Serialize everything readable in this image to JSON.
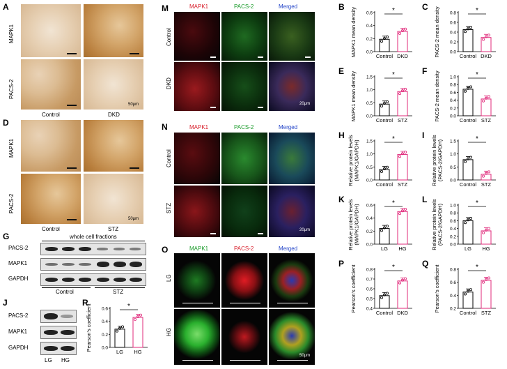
{
  "panels": {
    "A": "A",
    "B": "B",
    "C": "C",
    "D": "D",
    "E": "E",
    "F": "F",
    "G": "G",
    "H": "H",
    "I": "I",
    "J": "J",
    "K": "K",
    "L": "L",
    "M": "M",
    "N": "N",
    "O": "O",
    "P": "P",
    "Q": "Q",
    "R": "R"
  },
  "panel_a": {
    "row_labels": [
      "MAPK1",
      "PACS-2"
    ],
    "col_labels": [
      "Control",
      "DKD"
    ],
    "scale": "50μm"
  },
  "panel_d": {
    "row_labels": [
      "MAPK1",
      "PACS-2"
    ],
    "col_labels": [
      "Control",
      "STZ"
    ],
    "scale": "50μm"
  },
  "panel_g": {
    "header": "whole cell fractions",
    "rows": [
      "PACS-2",
      "MAPK1",
      "GAPDH"
    ],
    "groups": [
      "Control",
      "STZ"
    ]
  },
  "panel_j": {
    "rows": [
      "PACS-2",
      "MAPK1",
      "GAPDH"
    ],
    "lanes": [
      "LG",
      "HG"
    ]
  },
  "panel_m": {
    "col_labels": [
      "MAPK1",
      "PACS-2",
      "Merged"
    ],
    "row_labels": [
      "Control",
      "DKD"
    ],
    "scale": "20μm"
  },
  "panel_n": {
    "col_labels": [
      "MAPK1",
      "PACS-2",
      "Merged"
    ],
    "row_labels": [
      "Control",
      "STZ"
    ],
    "scale": "20μm"
  },
  "panel_o": {
    "col_labels": [
      "MAPK1",
      "PACS-2",
      "Merged"
    ],
    "row_labels": [
      "LG",
      "HG"
    ],
    "scale": "50μm"
  },
  "colors": {
    "control": "#000000",
    "treatment": "#e0287a",
    "red_channel": "#d81e2a",
    "green_channel": "#1a9b2a",
    "blue_channel": "#2445c8"
  },
  "chart_data": [
    {
      "id": "B",
      "type": "bar",
      "ylabel": "MAPK1 mean density",
      "categories": [
        "Control",
        "DKD"
      ],
      "values": [
        0.19,
        0.31
      ],
      "ylim": [
        0,
        0.6
      ],
      "yticks": [
        0,
        0.2,
        0.4,
        0.6
      ],
      "ytick_labels": [
        "0.0",
        "0.2",
        "0.4",
        "0.6"
      ],
      "significance": "*"
    },
    {
      "id": "C",
      "type": "bar",
      "ylabel": "PACS-2 mean density",
      "categories": [
        "Control",
        "DKD"
      ],
      "values": [
        0.45,
        0.29
      ],
      "ylim": [
        0,
        0.8
      ],
      "yticks": [
        0,
        0.2,
        0.4,
        0.6,
        0.8
      ],
      "ytick_labels": [
        "0.0",
        "0.2",
        "0.4",
        "0.6",
        "0.8"
      ],
      "significance": "*"
    },
    {
      "id": "E",
      "type": "bar",
      "ylabel": "MAPK1 mean density",
      "categories": [
        "Control",
        "STZ"
      ],
      "values": [
        0.45,
        0.93
      ],
      "ylim": [
        0,
        1.5
      ],
      "yticks": [
        0,
        0.5,
        1.0,
        1.5
      ],
      "ytick_labels": [
        "0.0",
        "0.5",
        "1.0",
        "1.5"
      ],
      "significance": "*"
    },
    {
      "id": "F",
      "type": "bar",
      "ylabel": "PACS-2 mean density",
      "categories": [
        "Control",
        "STZ"
      ],
      "values": [
        0.68,
        0.43
      ],
      "ylim": [
        0,
        1.0
      ],
      "yticks": [
        0,
        0.2,
        0.4,
        0.6,
        0.8,
        1.0
      ],
      "ytick_labels": [
        "0.0",
        "0.2",
        "0.4",
        "0.6",
        "0.8",
        "1.0"
      ],
      "significance": "*"
    },
    {
      "id": "H",
      "type": "bar",
      "ylabel": "Relative protein levels (MAPK1/GAPDH)",
      "categories": [
        "Control",
        "STZ"
      ],
      "values": [
        0.4,
        0.98
      ],
      "ylim": [
        0,
        1.5
      ],
      "yticks": [
        0,
        0.5,
        1.0,
        1.5
      ],
      "ytick_labels": [
        "0.0",
        "0.5",
        "1.0",
        "1.5"
      ],
      "significance": "*"
    },
    {
      "id": "I",
      "type": "bar",
      "ylabel": "Relative protein levels (PACS-2/GAPDH)",
      "categories": [
        "Control",
        "STZ"
      ],
      "values": [
        0.78,
        0.22
      ],
      "ylim": [
        0,
        1.5
      ],
      "yticks": [
        0,
        0.5,
        1.0,
        1.5
      ],
      "ytick_labels": [
        "0.0",
        "0.5",
        "1.0",
        "1.5"
      ],
      "significance": "*"
    },
    {
      "id": "K",
      "type": "bar",
      "ylabel": "Relative protein levels (MAPK1/GAPDH)",
      "categories": [
        "LG",
        "HG"
      ],
      "values": [
        0.24,
        0.5
      ],
      "ylim": [
        0,
        0.6
      ],
      "yticks": [
        0,
        0.2,
        0.4,
        0.6
      ],
      "ytick_labels": [
        "0.0",
        "0.2",
        "0.4",
        "0.6"
      ],
      "significance": "*"
    },
    {
      "id": "L",
      "type": "bar",
      "ylabel": "Relative protein levels (PACS-2/GAPDH)",
      "categories": [
        "LG",
        "HG"
      ],
      "values": [
        0.6,
        0.34
      ],
      "ylim": [
        0,
        1.0
      ],
      "yticks": [
        0,
        0.2,
        0.4,
        0.6,
        0.8,
        1.0
      ],
      "ytick_labels": [
        "0.0",
        "0.2",
        "0.4",
        "0.6",
        "0.8",
        "1.0"
      ],
      "significance": "*"
    },
    {
      "id": "P",
      "type": "bar",
      "ylabel": "Pearson's coefficient",
      "categories": [
        "Control",
        "DKD"
      ],
      "values": [
        0.53,
        0.68
      ],
      "ylim": [
        0.4,
        0.8
      ],
      "yticks": [
        0.4,
        0.5,
        0.6,
        0.7,
        0.8
      ],
      "ytick_labels": [
        "0.4",
        "0.5",
        "0.6",
        "0.7",
        "0.8"
      ],
      "significance": "*"
    },
    {
      "id": "Q",
      "type": "bar",
      "ylabel": "Pearson's coefficient",
      "categories": [
        "Control",
        "STZ"
      ],
      "values": [
        0.45,
        0.63
      ],
      "ylim": [
        0.2,
        0.8
      ],
      "yticks": [
        0.2,
        0.4,
        0.6,
        0.8
      ],
      "ytick_labels": [
        "0.2",
        "0.4",
        "0.6",
        "0.8"
      ],
      "significance": "*"
    },
    {
      "id": "R",
      "type": "bar",
      "ylabel": "Pearson's coefficient",
      "categories": [
        "LG",
        "HG"
      ],
      "values": [
        0.28,
        0.46
      ],
      "ylim": [
        0,
        0.6
      ],
      "yticks": [
        0,
        0.2,
        0.4,
        0.6
      ],
      "ytick_labels": [
        "0.0",
        "0.2",
        "0.4",
        "0.6"
      ],
      "significance": "*"
    }
  ]
}
